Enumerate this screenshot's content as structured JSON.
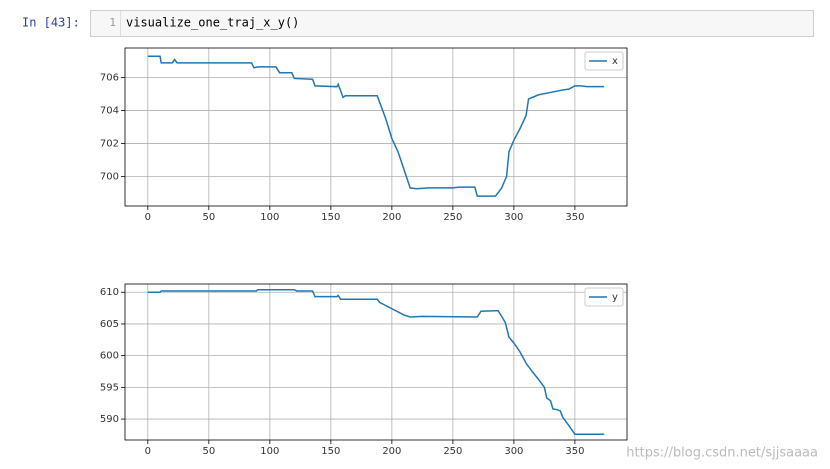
{
  "cell": {
    "prompt": "In [43]:",
    "line_number": "1",
    "code": "visualize_one_traj_x_y()"
  },
  "watermark": "https://blog.csdn.net/sjjsaaaa",
  "chart_data": [
    {
      "type": "line",
      "grid": true,
      "legend": "upper right",
      "xlim": [
        -18.7,
        392.7
      ],
      "xticks": [
        0,
        50,
        100,
        150,
        200,
        250,
        300,
        350
      ],
      "ylim": [
        698.2,
        707.8
      ],
      "yticks": [
        700,
        702,
        704,
        706
      ],
      "x": [
        0,
        10,
        11,
        20,
        22,
        24,
        85,
        87,
        90,
        105,
        108,
        118,
        120,
        135,
        137,
        155,
        156,
        160,
        162,
        188,
        190,
        195,
        200,
        205,
        210,
        215,
        220,
        230,
        250,
        255,
        268,
        270,
        285,
        290,
        294,
        296,
        300,
        305,
        310,
        312,
        320,
        330,
        340,
        345,
        350,
        355,
        360,
        374
      ],
      "series": [
        {
          "name": "x",
          "color": "#1f77b4",
          "values": [
            707.3,
            707.3,
            706.9,
            706.9,
            707.1,
            706.9,
            706.9,
            706.6,
            706.65,
            706.65,
            706.3,
            706.3,
            705.95,
            705.9,
            705.5,
            705.45,
            705.6,
            704.8,
            704.9,
            704.9,
            704.5,
            703.5,
            702.3,
            701.5,
            700.4,
            699.3,
            699.25,
            699.3,
            699.3,
            699.35,
            699.35,
            698.8,
            698.8,
            699.3,
            700.0,
            701.5,
            702.2,
            702.9,
            703.7,
            704.7,
            704.95,
            705.1,
            705.25,
            705.3,
            705.5,
            705.5,
            705.45,
            705.45
          ]
        }
      ]
    },
    {
      "type": "line",
      "grid": true,
      "legend": "upper right",
      "xlim": [
        -18.7,
        392.7
      ],
      "xticks": [
        0,
        50,
        100,
        150,
        200,
        250,
        300,
        350
      ],
      "ylim": [
        586.7,
        611.3
      ],
      "yticks": [
        590,
        595,
        600,
        605,
        610
      ],
      "x": [
        0,
        10,
        11,
        89,
        90,
        120,
        122,
        135,
        137,
        155,
        156,
        158,
        188,
        190,
        200,
        210,
        215,
        225,
        270,
        273,
        287,
        290,
        293,
        296,
        300,
        305,
        310,
        315,
        320,
        325,
        327,
        330,
        332,
        335,
        338,
        340,
        345,
        350,
        352,
        374
      ],
      "series": [
        {
          "name": "y",
          "color": "#1f77b4",
          "values": [
            610.0,
            610.0,
            610.2,
            610.2,
            610.4,
            610.4,
            610.2,
            610.2,
            609.3,
            609.3,
            609.5,
            608.9,
            608.9,
            608.4,
            607.4,
            606.4,
            606.1,
            606.2,
            606.1,
            607.0,
            607.1,
            606.2,
            605.2,
            602.9,
            602.0,
            600.6,
            598.8,
            597.5,
            596.3,
            595.0,
            593.3,
            592.9,
            591.6,
            591.5,
            591.3,
            590.3,
            589.0,
            587.6,
            587.6,
            587.6
          ]
        }
      ]
    }
  ]
}
